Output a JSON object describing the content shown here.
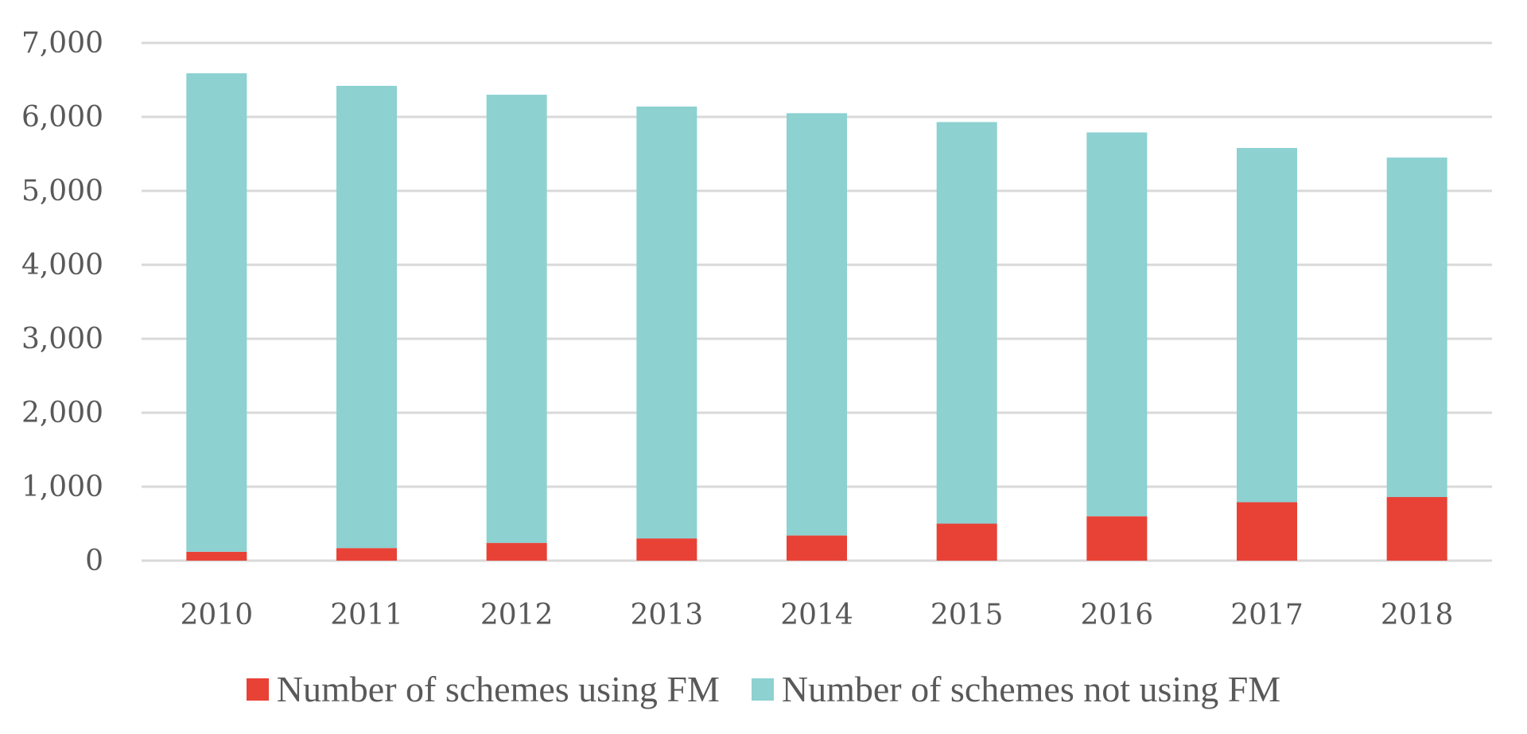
{
  "chart_data": {
    "type": "bar",
    "stacked": true,
    "categories": [
      "2010",
      "2011",
      "2012",
      "2013",
      "2014",
      "2015",
      "2016",
      "2017",
      "2018"
    ],
    "series": [
      {
        "name": "Number of schemes using FM",
        "color": "#e84236",
        "values": [
          120,
          170,
          240,
          300,
          340,
          500,
          600,
          790,
          860
        ]
      },
      {
        "name": "Number of schemes not using FM",
        "color": "#8dd1d1",
        "values": [
          6470,
          6250,
          6060,
          5840,
          5710,
          5430,
          5190,
          4790,
          4590
        ]
      }
    ],
    "ylim": [
      0,
      7000
    ],
    "yticks": [
      0,
      1000,
      2000,
      3000,
      4000,
      5000,
      6000,
      7000
    ],
    "ytick_labels": [
      "0",
      "1,000",
      "2,000",
      "3,000",
      "4,000",
      "5,000",
      "6,000",
      "7,000"
    ],
    "title": "",
    "xlabel": "",
    "ylabel": "",
    "grid": true,
    "legend_position": "bottom"
  }
}
